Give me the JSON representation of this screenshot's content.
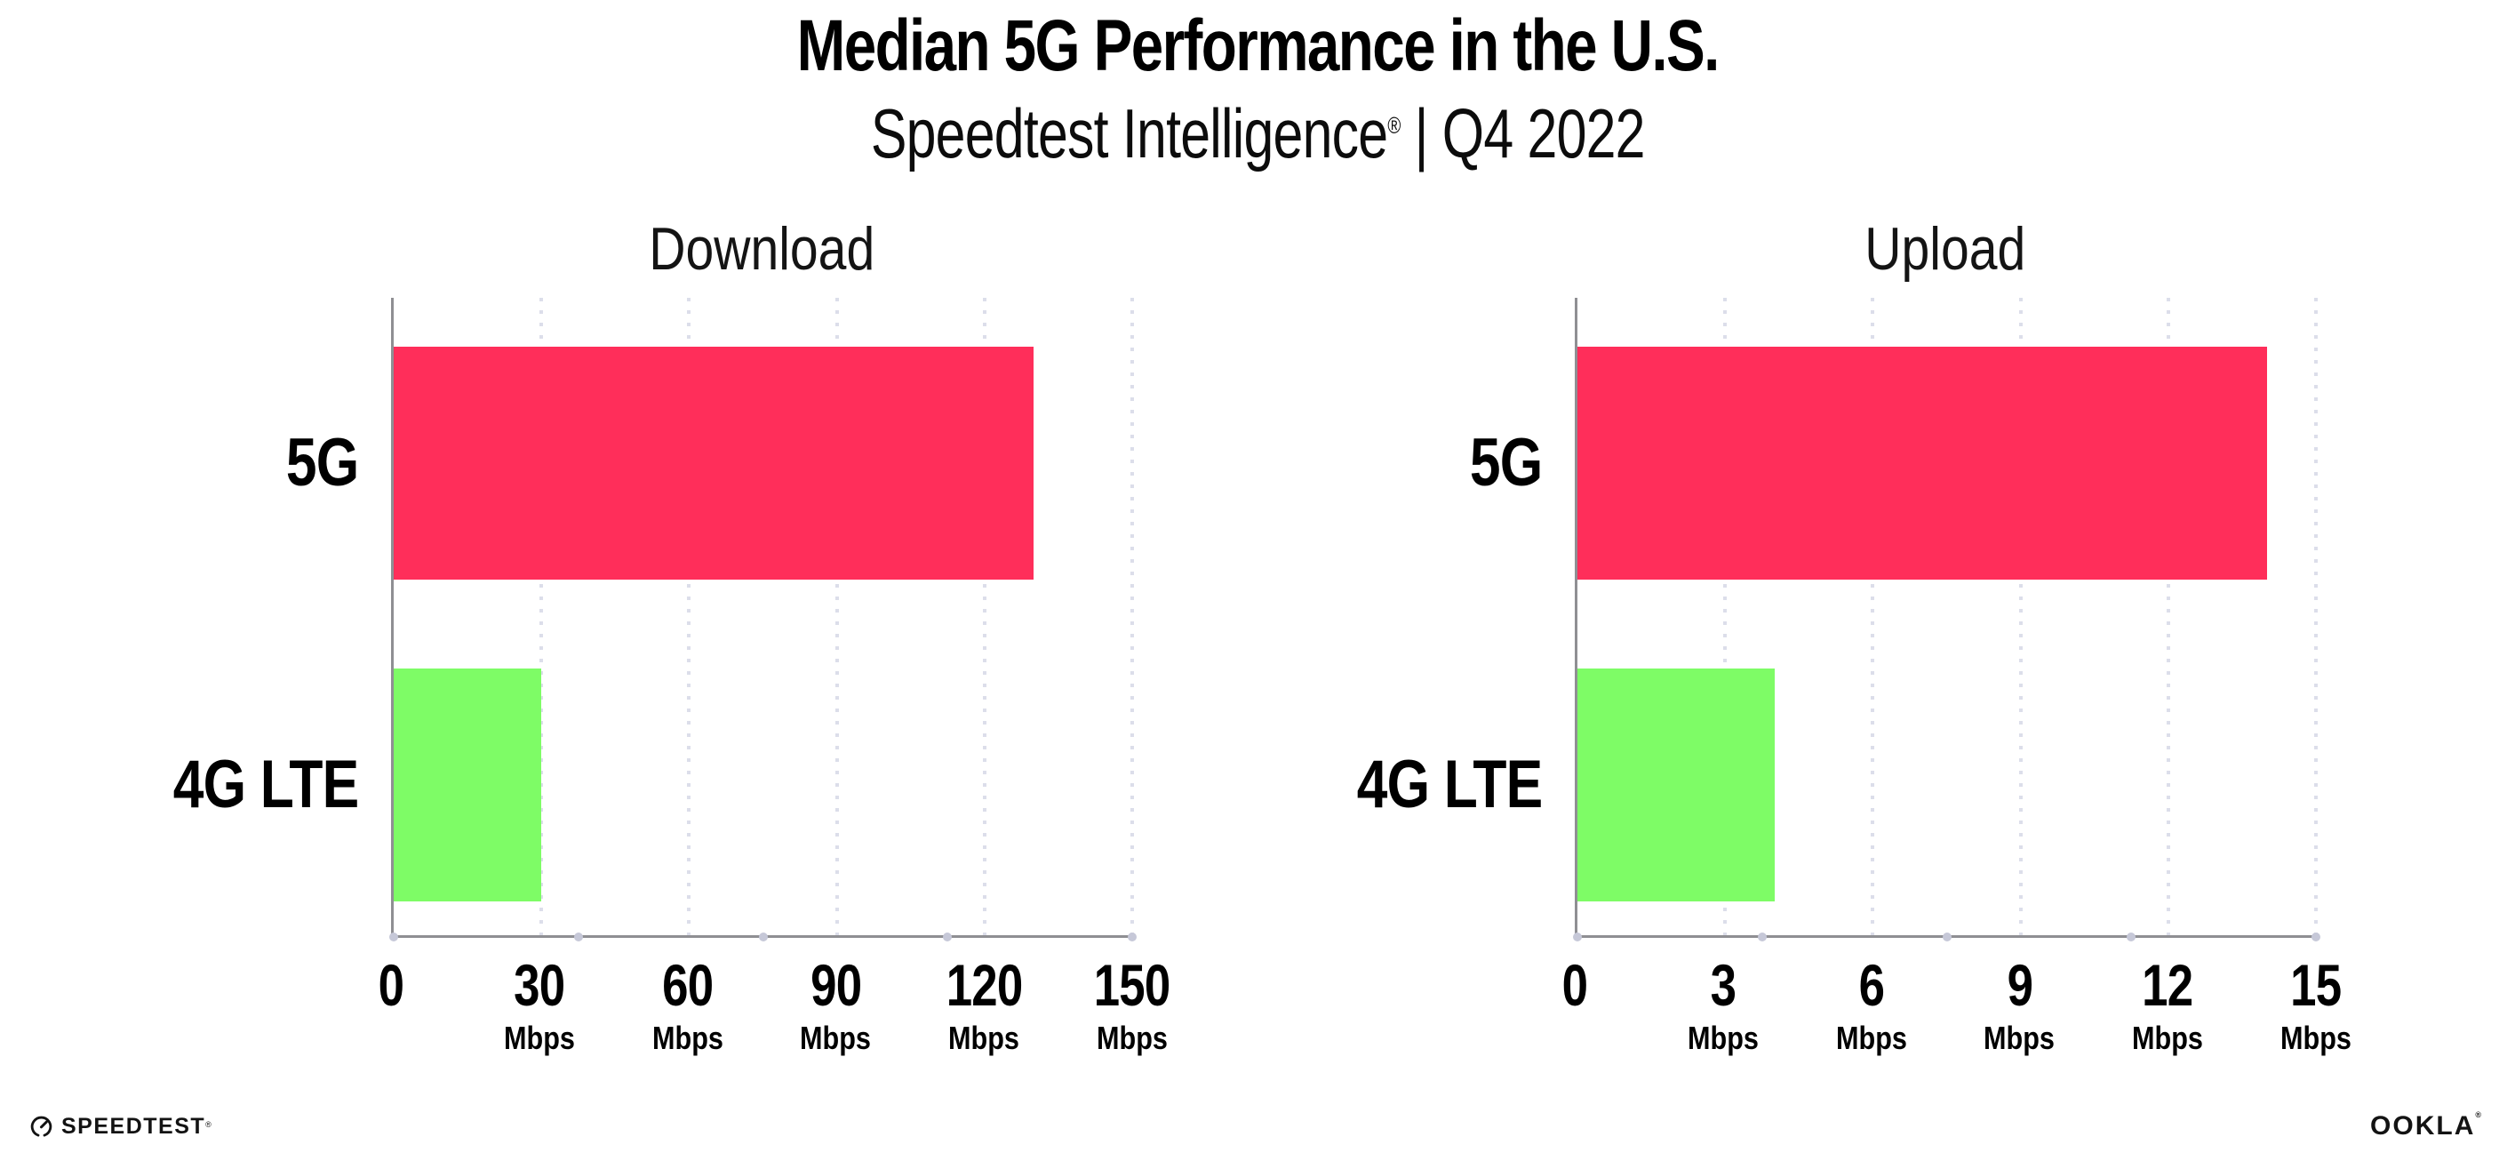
{
  "header": {
    "title": "Median 5G Performance in the U.S.",
    "subtitle_brand": "Speedtest Intelligence",
    "subtitle_reg": "®",
    "subtitle_rest": " | Q4 2022"
  },
  "chart_data": [
    {
      "type": "bar",
      "orientation": "horizontal",
      "title": "Download",
      "categories": [
        "5G",
        "4G LTE"
      ],
      "values": [
        130,
        30
      ],
      "unit": "Mbps",
      "xlim": [
        0,
        150
      ],
      "xticks": [
        0,
        30,
        60,
        90,
        120,
        150
      ],
      "bar_colors": [
        "#ff2e5a",
        "#7efc66"
      ],
      "grid": "dotted-vertical",
      "legend": "none"
    },
    {
      "type": "bar",
      "orientation": "horizontal",
      "title": "Upload",
      "categories": [
        "5G",
        "4G LTE"
      ],
      "values": [
        14,
        4
      ],
      "unit": "Mbps",
      "xlim": [
        0,
        15
      ],
      "xticks": [
        0,
        3,
        6,
        9,
        12,
        15
      ],
      "bar_colors": [
        "#ff2e5a",
        "#7efc66"
      ],
      "grid": "dotted-vertical",
      "legend": "none"
    }
  ],
  "colors": {
    "bar_5g": "#ff2e5a",
    "bar_4g_lte": "#7efc66",
    "axis": "#8f8f93",
    "gridline_dots": "#dcdeea",
    "baseline_dots": "#c6c8d8",
    "text": "#000000",
    "background": "#ffffff"
  },
  "footer": {
    "speedtest_label": "SPEEDTEST",
    "speedtest_reg": "®",
    "ookla_label": "OOKLA",
    "ookla_reg": "®"
  }
}
